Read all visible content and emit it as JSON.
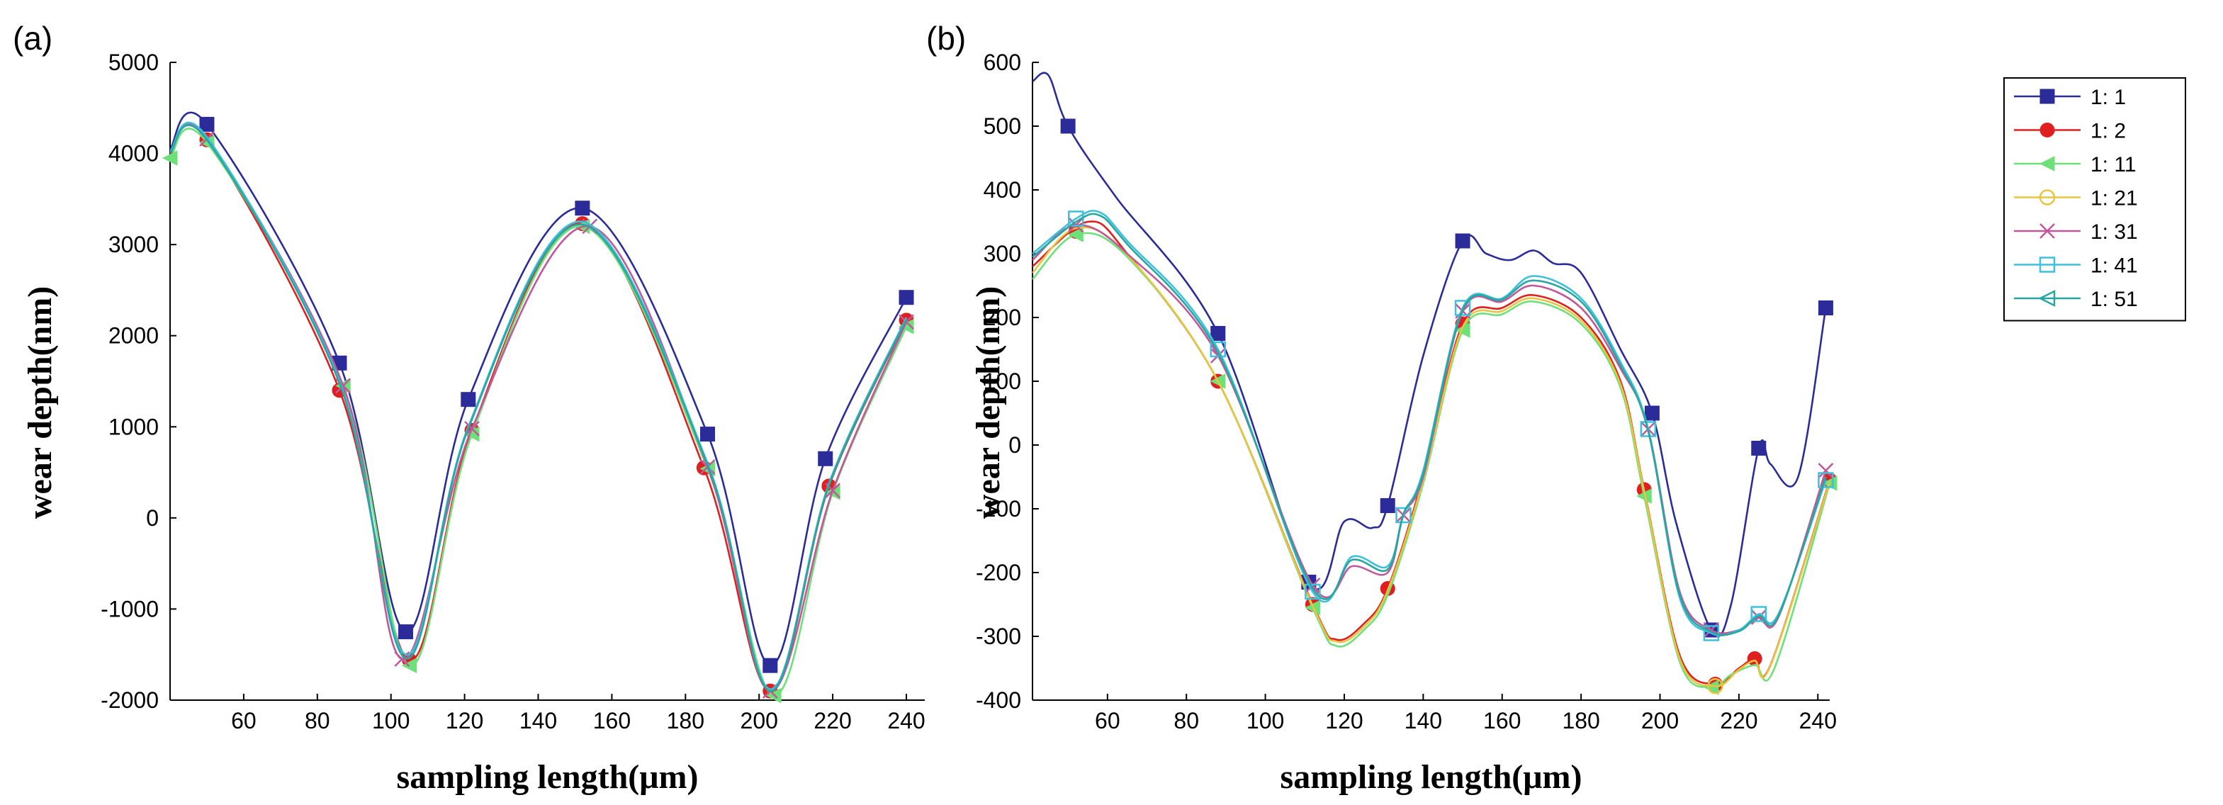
{
  "series_styles": [
    {
      "name": "1: 1",
      "color": "#2b2b9a",
      "marker": "square-filled"
    },
    {
      "name": "1: 2",
      "color": "#e02020",
      "marker": "circle-filled"
    },
    {
      "name": "1: 11",
      "color": "#6ee07a",
      "marker": "triangle-left-filled"
    },
    {
      "name": "1: 21",
      "color": "#e6c640",
      "marker": "circle-open"
    },
    {
      "name": "1: 31",
      "color": "#c0589a",
      "marker": "x"
    },
    {
      "name": "1: 41",
      "color": "#3ec0dc",
      "marker": "square-open"
    },
    {
      "name": "1: 51",
      "color": "#2aa6a0",
      "marker": "triangle-left-open"
    }
  ],
  "chart_data": [
    {
      "panel": "(a)",
      "type": "line",
      "xlabel": "sampling length(μm)",
      "ylabel": "wear depth(nm)",
      "xlim": [
        40,
        245
      ],
      "ylim": [
        -2000,
        5000
      ],
      "xticks": [
        60,
        80,
        100,
        120,
        140,
        160,
        180,
        200,
        220,
        240
      ],
      "yticks": [
        -2000,
        -1000,
        0,
        1000,
        2000,
        3000,
        4000,
        5000
      ],
      "series": [
        {
          "name": "1: 1",
          "x": [
            40,
            50,
            86,
            104,
            121,
            152,
            186,
            203,
            218,
            240
          ],
          "y": [
            4050,
            4320,
            1700,
            -1250,
            1300,
            3400,
            920,
            -1620,
            650,
            2420
          ],
          "marker_x": [
            50,
            86,
            104,
            121,
            152,
            186,
            203,
            218,
            240
          ]
        },
        {
          "name": "1: 2",
          "x": [
            40,
            50,
            86,
            105,
            122,
            152,
            185,
            203,
            219,
            240
          ],
          "y": [
            4000,
            4150,
            1400,
            -1560,
            960,
            3230,
            550,
            -1900,
            350,
            2170
          ],
          "marker_x": [
            50,
            86,
            105,
            122,
            152,
            185,
            203,
            219,
            240
          ]
        },
        {
          "name": "1: 11",
          "x": [
            40,
            50,
            87,
            105,
            122,
            152,
            186,
            204,
            220,
            240
          ],
          "y": [
            3950,
            4120,
            1450,
            -1620,
            920,
            3200,
            540,
            -1950,
            280,
            2100
          ],
          "marker_x": [
            40,
            50,
            87,
            105,
            122,
            152,
            186,
            204,
            220,
            240
          ]
        },
        {
          "name": "1: 31",
          "x": [
            40,
            50,
            87,
            103,
            122,
            154,
            186,
            203,
            220,
            240
          ],
          "y": [
            4020,
            4160,
            1450,
            -1550,
            980,
            3200,
            560,
            -1900,
            300,
            2150
          ],
          "marker_x": [
            50,
            87,
            103,
            122,
            154,
            186,
            203,
            220,
            240
          ]
        },
        {
          "name": "1: 41",
          "x": [
            40,
            50,
            86,
            104,
            121,
            152,
            186,
            203,
            219,
            240
          ],
          "y": [
            4030,
            4180,
            1500,
            -1500,
            1000,
            3250,
            600,
            -1880,
            380,
            2200
          ],
          "marker_x": []
        },
        {
          "name": "1: 51",
          "x": [
            40,
            50,
            86,
            104,
            121,
            152,
            186,
            203,
            219,
            240
          ],
          "y": [
            4010,
            4150,
            1480,
            -1540,
            980,
            3220,
            580,
            -1900,
            360,
            2180
          ],
          "marker_x": []
        }
      ]
    },
    {
      "panel": "(b)",
      "type": "line",
      "xlabel": "sampling length(μm)",
      "ylabel": "wear depth(nm)",
      "xlim": [
        41,
        243
      ],
      "ylim": [
        -400,
        600
      ],
      "xticks": [
        60,
        80,
        100,
        120,
        140,
        160,
        180,
        200,
        220,
        240
      ],
      "yticks": [
        -400,
        -300,
        -200,
        -100,
        0,
        100,
        200,
        300,
        400,
        500,
        600
      ],
      "series": [
        {
          "name": "1: 1",
          "x": [
            41,
            45,
            50,
            62,
            88,
            111,
            120,
            127,
            131,
            140,
            150,
            156,
            162,
            168,
            173,
            180,
            190,
            198,
            204,
            213,
            218,
            225,
            228,
            235,
            242
          ],
          "y": [
            570,
            580,
            500,
            390,
            175,
            -215,
            -120,
            -130,
            -95,
            140,
            320,
            300,
            290,
            305,
            285,
            270,
            150,
            50,
            -120,
            -290,
            -250,
            -5,
            -30,
            -50,
            215
          ],
          "marker_x": [
            50,
            88,
            111,
            131,
            150,
            198,
            213,
            225,
            242
          ]
        },
        {
          "name": "1: 2",
          "x": [
            41,
            55,
            65,
            88,
            112,
            118,
            125,
            131,
            140,
            150,
            160,
            168,
            180,
            190,
            196,
            205,
            214,
            220,
            224,
            228,
            243
          ],
          "y": [
            280,
            350,
            300,
            100,
            -250,
            -305,
            -280,
            -225,
            -50,
            190,
            215,
            235,
            200,
            100,
            -70,
            -330,
            -375,
            -350,
            -335,
            -345,
            -55
          ],
          "marker_x": [
            52,
            88,
            112,
            131,
            150,
            196,
            214,
            224,
            243
          ]
        },
        {
          "name": "1: 11",
          "x": [
            41,
            52,
            65,
            88,
            112,
            118,
            125,
            131,
            140,
            150,
            160,
            168,
            180,
            190,
            196,
            205,
            213,
            218,
            224,
            229,
            243
          ],
          "y": [
            260,
            330,
            295,
            100,
            -255,
            -315,
            -290,
            -235,
            -60,
            180,
            205,
            225,
            190,
            90,
            -80,
            -340,
            -380,
            -360,
            -345,
            -350,
            -60
          ],
          "marker_x": [
            52,
            88,
            112,
            150,
            196,
            213,
            243
          ]
        },
        {
          "name": "1: 21",
          "x": [
            41,
            52,
            65,
            88,
            112,
            118,
            125,
            131,
            140,
            150,
            160,
            168,
            180,
            190,
            196,
            205,
            214,
            220,
            224,
            228,
            243
          ],
          "y": [
            270,
            340,
            298,
            100,
            -252,
            -308,
            -285,
            -228,
            -55,
            185,
            210,
            230,
            195,
            95,
            -72,
            -335,
            -378,
            -352,
            -338,
            -346,
            -57
          ],
          "marker_x": [
            214
          ]
        },
        {
          "name": "1: 31",
          "x": [
            41,
            52,
            65,
            88,
            112,
            122,
            131,
            135,
            140,
            150,
            160,
            168,
            180,
            190,
            197,
            205,
            213,
            220,
            225,
            230,
            242
          ],
          "y": [
            290,
            345,
            300,
            140,
            -220,
            -190,
            -200,
            -110,
            -50,
            210,
            225,
            250,
            215,
            120,
            25,
            -230,
            -290,
            -290,
            -270,
            -270,
            -40
          ],
          "marker_x": [
            52,
            88,
            112,
            135,
            150,
            197,
            213,
            225,
            242
          ]
        },
        {
          "name": "1: 41",
          "x": [
            41,
            52,
            58,
            65,
            88,
            112,
            122,
            131,
            135,
            140,
            150,
            160,
            168,
            180,
            190,
            197,
            205,
            213,
            220,
            225,
            230,
            242
          ],
          "y": [
            300,
            355,
            365,
            320,
            150,
            -230,
            -175,
            -190,
            -110,
            -40,
            215,
            230,
            265,
            230,
            130,
            25,
            -240,
            -295,
            -290,
            -265,
            -265,
            -55
          ],
          "marker_x": [
            52,
            88,
            112,
            135,
            150,
            197,
            213,
            225,
            242
          ]
        },
        {
          "name": "1: 51",
          "x": [
            41,
            52,
            58,
            65,
            88,
            112,
            122,
            131,
            135,
            140,
            150,
            160,
            168,
            180,
            190,
            197,
            205,
            213,
            220,
            225,
            230,
            242
          ],
          "y": [
            295,
            350,
            360,
            315,
            145,
            -225,
            -180,
            -195,
            -108,
            -45,
            212,
            228,
            258,
            225,
            125,
            22,
            -235,
            -293,
            -292,
            -268,
            -268,
            -50
          ],
          "marker_x": []
        }
      ]
    }
  ]
}
